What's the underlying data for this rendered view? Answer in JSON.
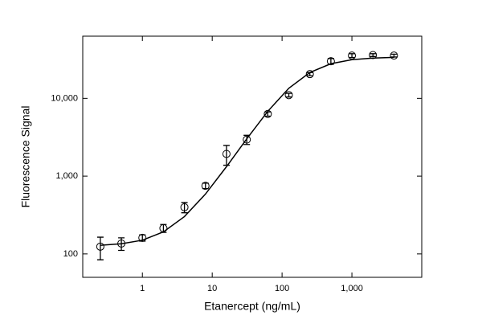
{
  "chart_data": {
    "type": "scatter",
    "xlabel": "Etanercept (ng/mL)",
    "ylabel": "Fluorescence Signal",
    "xscale": "log",
    "yscale": "log",
    "xlim": [
      0.14,
      10000
    ],
    "ylim": [
      50,
      63000
    ],
    "xticks": [
      1,
      10,
      100,
      {
        "value": 1000,
        "label": "1,000"
      }
    ],
    "yticks": [
      100,
      {
        "value": 1000,
        "label": "1,000"
      },
      {
        "value": 10000,
        "label": "10,000"
      }
    ],
    "x": [
      0.25,
      0.5,
      1,
      2,
      4,
      8,
      16,
      31.25,
      62.5,
      125,
      250,
      500,
      1000,
      2000,
      4000
    ],
    "series": [
      {
        "kind": "points",
        "color": "#000000",
        "values": [
          124,
          136,
          161,
          214,
          398,
          751,
          1930,
          2950,
          6300,
          11000,
          20500,
          30000,
          35500,
          36000,
          35500
        ],
        "errors": [
          40,
          25,
          15,
          25,
          60,
          60,
          550,
          400,
          400,
          600,
          1000,
          2500,
          2000,
          1500,
          1500
        ]
      },
      {
        "kind": "fit",
        "color": "#000000",
        "values": [
          129,
          135,
          150,
          192,
          302,
          588,
          1322,
          3018,
          6820,
          13482,
          21530,
          27869,
          31383,
          32959,
          33598
        ]
      }
    ]
  }
}
